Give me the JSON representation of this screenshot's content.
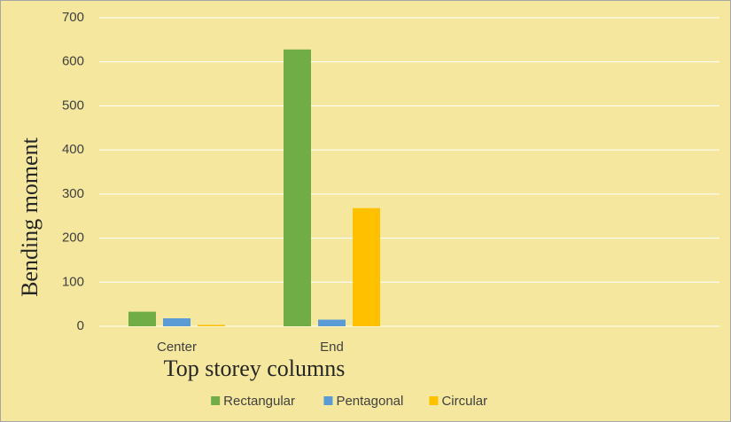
{
  "chart_data": {
    "type": "bar",
    "x_label": "Top storey columns",
    "y_label": "Bending moment",
    "categories": [
      "Center",
      "End",
      null,
      null
    ],
    "series": [
      {
        "name": "Rectangular",
        "color": "#70ad47",
        "values": [
          33,
          628,
          null,
          null
        ]
      },
      {
        "name": "Pentagonal",
        "color": "#5b9bd5",
        "values": [
          18,
          15,
          null,
          null
        ]
      },
      {
        "name": "Circular",
        "color": "#ffc000",
        "values": [
          3,
          268,
          null,
          null
        ]
      }
    ],
    "ylim": [
      0,
      700
    ],
    "yticks": [
      0,
      100,
      200,
      300,
      400,
      500,
      600,
      700
    ],
    "grid": true,
    "legend": "bottom",
    "background": "#f5e89e"
  }
}
